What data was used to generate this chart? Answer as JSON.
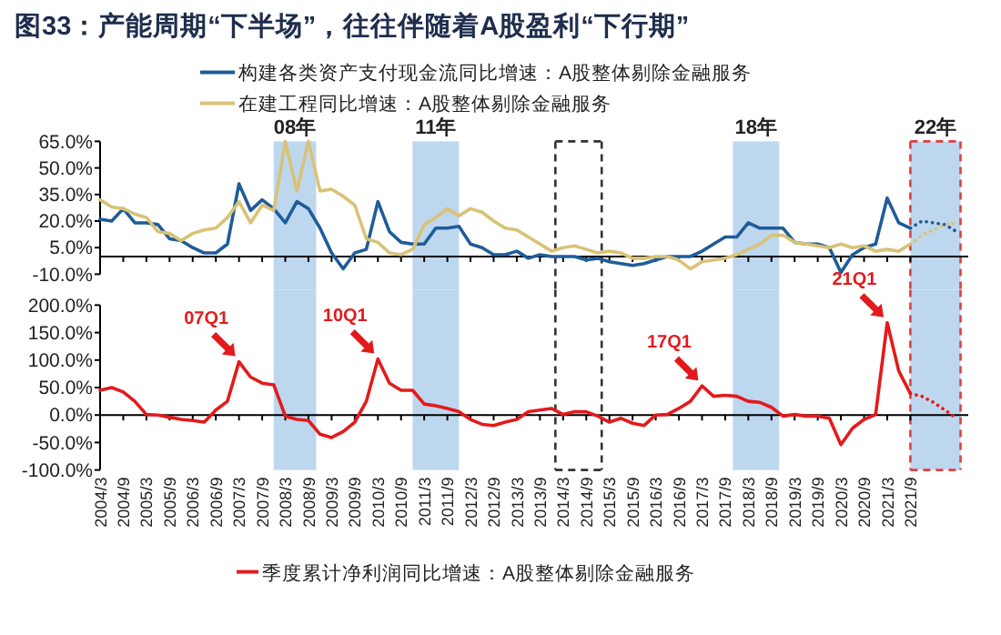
{
  "chart_data": [
    {
      "type": "line",
      "title": "图33：产能周期“下半场”，往往伴随着A股盈利“下行期”",
      "legend": "top",
      "tick_labels": "y",
      "xlim": [
        "2004-03",
        "2022-12"
      ],
      "ylim": [
        -10,
        65
      ],
      "yticks": [
        {
          "value": 65,
          "label": "65.0%"
        },
        {
          "value": 50,
          "label": "50.0%"
        },
        {
          "value": 35,
          "label": "35.0%"
        },
        {
          "value": 20,
          "label": "20.0%"
        },
        {
          "value": 5,
          "label": "5.0%"
        },
        {
          "value": -10,
          "label": "-10.0%"
        }
      ],
      "xticks": [
        {
          "value": "2004-03",
          "label": null
        },
        {
          "value": "2004-09",
          "label": null
        },
        {
          "value": "2005-03",
          "label": null
        },
        {
          "value": "2005-09",
          "label": null
        },
        {
          "value": "2006-03",
          "label": null
        },
        {
          "value": "2006-09",
          "label": null
        },
        {
          "value": "2007-03",
          "label": null
        },
        {
          "value": "2007-09",
          "label": null
        },
        {
          "value": "2008-03",
          "label": null
        },
        {
          "value": "2008-09",
          "label": null
        },
        {
          "value": "2009-03",
          "label": null
        },
        {
          "value": "2009-09",
          "label": null
        },
        {
          "value": "2010-03",
          "label": null
        },
        {
          "value": "2010-09",
          "label": null
        },
        {
          "value": "2011-03",
          "label": null
        },
        {
          "value": "2011-09",
          "label": null
        },
        {
          "value": "2012-03",
          "label": null
        },
        {
          "value": "2012-09",
          "label": null
        },
        {
          "value": "2013-03",
          "label": null
        },
        {
          "value": "2013-09",
          "label": null
        },
        {
          "value": "2014-03",
          "label": null
        },
        {
          "value": "2014-09",
          "label": null
        },
        {
          "value": "2015-03",
          "label": null
        },
        {
          "value": "2015-09",
          "label": null
        },
        {
          "value": "2016-03",
          "label": null
        },
        {
          "value": "2016-09",
          "label": null
        },
        {
          "value": "2017-03",
          "label": null
        },
        {
          "value": "2017-09",
          "label": null
        },
        {
          "value": "2018-03",
          "label": null
        },
        {
          "value": "2018-09",
          "label": null
        },
        {
          "value": "2019-03",
          "label": null
        },
        {
          "value": "2019-09",
          "label": null
        },
        {
          "value": "2020-03",
          "label": null
        },
        {
          "value": "2020-09",
          "label": null
        },
        {
          "value": "2021-03",
          "label": null
        },
        {
          "value": "2021-09",
          "label": null
        }
      ],
      "x": [
        "2004-03",
        "2004-06",
        "2004-09",
        "2004-12",
        "2005-03",
        "2005-06",
        "2005-09",
        "2005-12",
        "2006-03",
        "2006-06",
        "2006-09",
        "2006-12",
        "2007-03",
        "2007-06",
        "2007-09",
        "2007-12",
        "2008-03",
        "2008-06",
        "2008-09",
        "2008-12",
        "2009-03",
        "2009-06",
        "2009-09",
        "2009-12",
        "2010-03",
        "2010-06",
        "2010-09",
        "2010-12",
        "2011-03",
        "2011-06",
        "2011-09",
        "2011-12",
        "2012-03",
        "2012-06",
        "2012-09",
        "2012-12",
        "2013-03",
        "2013-06",
        "2013-09",
        "2013-12",
        "2014-03",
        "2014-06",
        "2014-09",
        "2014-12",
        "2015-03",
        "2015-06",
        "2015-09",
        "2015-12",
        "2016-03",
        "2016-06",
        "2016-09",
        "2016-12",
        "2017-03",
        "2017-06",
        "2017-09",
        "2017-12",
        "2018-03",
        "2018-06",
        "2018-09",
        "2018-12",
        "2019-03",
        "2019-06",
        "2019-09",
        "2019-12",
        "2020-03",
        "2020-06",
        "2020-09",
        "2020-12",
        "2021-03",
        "2021-06",
        "2021-09"
      ],
      "bands": [
        {
          "axis": "x",
          "from": "2007-12",
          "to": "2008-11",
          "label": "08年",
          "color": "#bdd7ee"
        },
        {
          "axis": "x",
          "from": "2010-12",
          "to": "2011-12",
          "label": "11年",
          "color": "#bdd7ee"
        },
        {
          "axis": "x",
          "from": "2017-11",
          "to": "2018-11",
          "label": "18年",
          "color": "#bdd7ee"
        },
        {
          "axis": "x",
          "from": "2021-09",
          "to": "2022-10",
          "label": "22年",
          "color": "#bdd7ee"
        }
      ],
      "ref_lines": [
        {
          "axis": "x",
          "value": "2014-01",
          "color": "#333333",
          "line_style": "dashed"
        },
        {
          "axis": "x",
          "value": "2015-01",
          "color": "#333333",
          "line_style": "dashed"
        },
        {
          "axis": "x",
          "value": "2021-09",
          "color": "#e04040",
          "line_style": "dashed"
        },
        {
          "axis": "x",
          "value": "2022-10",
          "color": "#e04040",
          "line_style": "dashed"
        }
      ],
      "series": [
        {
          "name": "构建各类资产支付现金流同比增速：A股整体剔除金融服务",
          "color": "#1f5c99",
          "values": [
            21,
            20,
            27,
            19,
            19,
            18,
            10,
            9,
            5,
            2,
            2,
            7,
            41,
            26,
            32,
            27,
            19,
            31,
            27,
            16,
            2,
            -7,
            2,
            4,
            31,
            14,
            8,
            7,
            7,
            16,
            16,
            17,
            7,
            5,
            1,
            1,
            3,
            -1,
            1,
            0,
            0,
            0,
            -2,
            -1,
            -3,
            -4,
            -5,
            -4,
            -2,
            0,
            0,
            0,
            3,
            7,
            11,
            11,
            19,
            16,
            16,
            16,
            8,
            7,
            7,
            5,
            -9,
            1,
            5,
            7,
            33,
            19,
            16
          ]
        },
        {
          "name": "在建工程同比增速：A股整体剔除金融服务",
          "color": "#d8c276",
          "values": [
            32,
            28,
            27,
            24,
            22,
            14,
            13,
            9,
            13,
            15,
            16,
            22,
            31,
            19,
            29,
            26,
            65,
            37,
            65,
            37,
            38,
            34,
            29,
            10,
            8,
            2,
            1,
            4,
            18,
            22,
            27,
            23,
            27,
            25,
            20,
            16,
            15,
            11,
            7,
            3,
            5,
            6,
            4,
            2,
            3,
            2,
            -1,
            -1,
            0,
            0,
            -2,
            -7,
            -3,
            -2,
            -1,
            1,
            4,
            7,
            12,
            12,
            8,
            7,
            6,
            5,
            7,
            5,
            6,
            3,
            4,
            3,
            7
          ]
        },
        {
          "color": "#1f5c99",
          "line_style": "dotted",
          "x": [
            "2021-09",
            "2021-12",
            "2022-03",
            "2022-06",
            "2022-09"
          ],
          "values": [
            16,
            20,
            19,
            18,
            14
          ]
        },
        {
          "color": "#d8c276",
          "line_style": "dotted",
          "x": [
            "2021-09",
            "2021-12",
            "2022-03",
            "2022-06",
            "2022-09"
          ],
          "values": [
            7,
            12,
            15,
            18,
            19
          ]
        }
      ]
    },
    {
      "type": "line",
      "legend": "bottom",
      "xlim": [
        "2004-03",
        "2022-12"
      ],
      "ylim": [
        -100,
        200
      ],
      "yticks": [
        {
          "value": 200,
          "label": "200.0%"
        },
        {
          "value": 150,
          "label": "150.0%"
        },
        {
          "value": 100,
          "label": "100.0%"
        },
        {
          "value": 50,
          "label": "50.0%"
        },
        {
          "value": 0,
          "label": "0.0%"
        },
        {
          "value": -50,
          "label": "-50.0%"
        },
        {
          "value": -100,
          "label": "-100.0%"
        }
      ],
      "xticks": [
        {
          "value": "2004-03",
          "label": "2004/3"
        },
        {
          "value": "2004-09",
          "label": "2004/9"
        },
        {
          "value": "2005-03",
          "label": "2005/3"
        },
        {
          "value": "2005-09",
          "label": "2005/9"
        },
        {
          "value": "2006-03",
          "label": "2006/3"
        },
        {
          "value": "2006-09",
          "label": "2006/9"
        },
        {
          "value": "2007-03",
          "label": "2007/3"
        },
        {
          "value": "2007-09",
          "label": "2007/9"
        },
        {
          "value": "2008-03",
          "label": "2008/3"
        },
        {
          "value": "2008-09",
          "label": "2008/9"
        },
        {
          "value": "2009-03",
          "label": "2009/3"
        },
        {
          "value": "2009-09",
          "label": "2009/9"
        },
        {
          "value": "2010-03",
          "label": "2010/3"
        },
        {
          "value": "2010-09",
          "label": "2010/9"
        },
        {
          "value": "2011-03",
          "label": "2011/3"
        },
        {
          "value": "2011-09",
          "label": "2011/9"
        },
        {
          "value": "2012-03",
          "label": "2012/3"
        },
        {
          "value": "2012-09",
          "label": "2012/9"
        },
        {
          "value": "2013-03",
          "label": "2013/3"
        },
        {
          "value": "2013-09",
          "label": "2013/9"
        },
        {
          "value": "2014-03",
          "label": "2014/3"
        },
        {
          "value": "2014-09",
          "label": "2014/9"
        },
        {
          "value": "2015-03",
          "label": "2015/3"
        },
        {
          "value": "2015-09",
          "label": "2015/9"
        },
        {
          "value": "2016-03",
          "label": "2016/3"
        },
        {
          "value": "2016-09",
          "label": "2016/9"
        },
        {
          "value": "2017-03",
          "label": "2017/3"
        },
        {
          "value": "2017-09",
          "label": "2017/9"
        },
        {
          "value": "2018-03",
          "label": "2018/3"
        },
        {
          "value": "2018-09",
          "label": "2018/9"
        },
        {
          "value": "2019-03",
          "label": "2019/3"
        },
        {
          "value": "2019-09",
          "label": "2019/9"
        },
        {
          "value": "2020-03",
          "label": "2020/3"
        },
        {
          "value": "2020-09",
          "label": "2020/9"
        },
        {
          "value": "2021-03",
          "label": "2021/3"
        },
        {
          "value": "2021-09",
          "label": "2021/9"
        }
      ],
      "x": [
        "2004-03",
        "2004-06",
        "2004-09",
        "2004-12",
        "2005-03",
        "2005-06",
        "2005-09",
        "2005-12",
        "2006-03",
        "2006-06",
        "2006-09",
        "2006-12",
        "2007-03",
        "2007-06",
        "2007-09",
        "2007-12",
        "2008-03",
        "2008-06",
        "2008-09",
        "2008-12",
        "2009-03",
        "2009-06",
        "2009-09",
        "2009-12",
        "2010-03",
        "2010-06",
        "2010-09",
        "2010-12",
        "2011-03",
        "2011-06",
        "2011-09",
        "2011-12",
        "2012-03",
        "2012-06",
        "2012-09",
        "2012-12",
        "2013-03",
        "2013-06",
        "2013-09",
        "2013-12",
        "2014-03",
        "2014-06",
        "2014-09",
        "2014-12",
        "2015-03",
        "2015-06",
        "2015-09",
        "2015-12",
        "2016-03",
        "2016-06",
        "2016-09",
        "2016-12",
        "2017-03",
        "2017-06",
        "2017-09",
        "2017-12",
        "2018-03",
        "2018-06",
        "2018-09",
        "2018-12",
        "2019-03",
        "2019-06",
        "2019-09",
        "2019-12",
        "2020-03",
        "2020-06",
        "2020-09",
        "2020-12",
        "2021-03",
        "2021-06",
        "2021-09"
      ],
      "bands": [
        {
          "axis": "x",
          "from": "2007-12",
          "to": "2008-11",
          "color": "#bdd7ee"
        },
        {
          "axis": "x",
          "from": "2010-12",
          "to": "2011-12",
          "color": "#bdd7ee"
        },
        {
          "axis": "x",
          "from": "2017-11",
          "to": "2018-11",
          "color": "#bdd7ee"
        },
        {
          "axis": "x",
          "from": "2021-09",
          "to": "2022-10",
          "color": "#bdd7ee"
        }
      ],
      "ref_lines": [
        {
          "axis": "x",
          "value": "2014-01",
          "color": "#333333",
          "line_style": "dashed"
        },
        {
          "axis": "x",
          "value": "2015-01",
          "color": "#333333",
          "line_style": "dashed"
        },
        {
          "axis": "x",
          "value": "2021-09",
          "color": "#e04040",
          "line_style": "dashed"
        },
        {
          "axis": "x",
          "value": "2022-10",
          "color": "#e04040",
          "line_style": "dashed"
        }
      ],
      "annotations": [
        {
          "text": "07Q1",
          "x": "2007-03",
          "y": 97
        },
        {
          "text": "10Q1",
          "x": "2010-03",
          "y": 102
        },
        {
          "text": "17Q1",
          "x": "2017-03",
          "y": 53
        },
        {
          "text": "21Q1",
          "x": "2021-03",
          "y": 168
        }
      ],
      "series": [
        {
          "name": "季度累计净利润同比增速：A股整体剔除金融服务",
          "color": "#e31a1c",
          "values": [
            45,
            50,
            42,
            25,
            1,
            0,
            -4,
            -8,
            -10,
            -13,
            9,
            25,
            97,
            69,
            58,
            55,
            -2,
            -8,
            -10,
            -35,
            -41,
            -30,
            -13,
            25,
            102,
            58,
            45,
            45,
            20,
            17,
            12,
            6,
            -8,
            -17,
            -19,
            -13,
            -8,
            6,
            9,
            12,
            1,
            6,
            6,
            -2,
            -13,
            -6,
            -15,
            -19,
            0,
            1,
            12,
            25,
            53,
            34,
            36,
            34,
            25,
            23,
            14,
            -2,
            1,
            -2,
            -2,
            -6,
            -54,
            -24,
            -8,
            1,
            168,
            80,
            39
          ]
        },
        {
          "color": "#e31a1c",
          "line_style": "dotted",
          "x": [
            "2021-09",
            "2021-12",
            "2022-03",
            "2022-06",
            "2022-09"
          ],
          "values": [
            39,
            34,
            23,
            9,
            -6
          ]
        }
      ]
    }
  ]
}
